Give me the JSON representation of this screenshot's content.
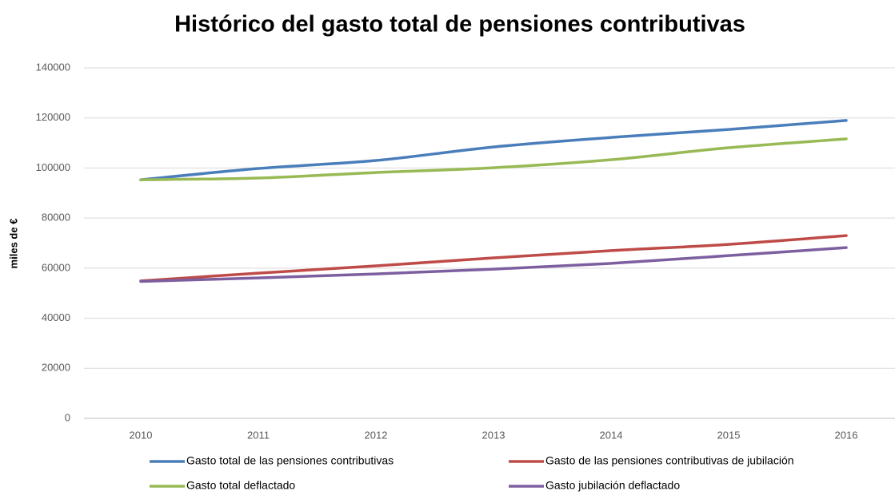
{
  "chart_data": {
    "type": "line",
    "title": "Histórico del gasto total de pensiones contributivas",
    "y_label": "miles de €",
    "categories": [
      "2010",
      "2011",
      "2012",
      "2013",
      "2014",
      "2015",
      "2016"
    ],
    "series": [
      {
        "name": "Gasto total de las pensiones contributivas",
        "color": "#4a7ebb",
        "values": [
          95300,
          99800,
          103000,
          108400,
          112200,
          115400,
          119000
        ]
      },
      {
        "name": "Gasto de las pensiones contributivas de jubilación",
        "color": "#be4b48",
        "values": [
          54900,
          58000,
          60900,
          64100,
          67000,
          69500,
          73000
        ]
      },
      {
        "name": "Gasto total deflactado",
        "color": "#98b954",
        "values": [
          95300,
          96000,
          98200,
          100100,
          103300,
          108100,
          111600
        ]
      },
      {
        "name": "Gasto jubilación deflactado",
        "color": "#7d5fa0",
        "values": [
          54700,
          56100,
          57700,
          59600,
          61900,
          65000,
          68200
        ]
      }
    ],
    "ylim": [
      0,
      140000
    ],
    "yticks": [
      0,
      20000,
      40000,
      60000,
      80000,
      100000,
      120000,
      140000
    ],
    "grid": true,
    "legend": "bottom"
  }
}
